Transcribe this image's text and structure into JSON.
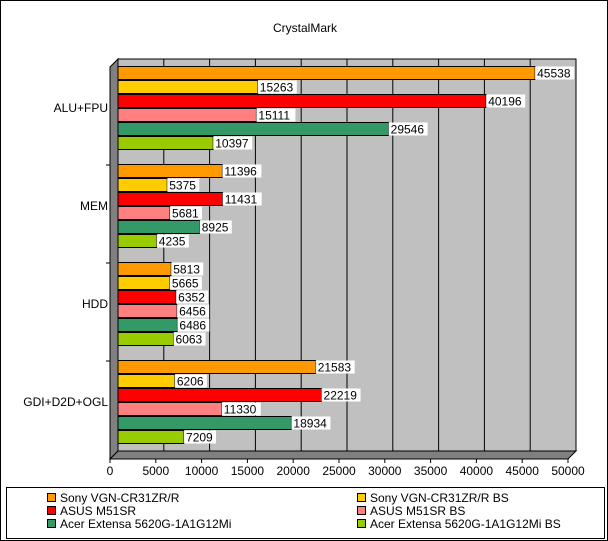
{
  "chart_data": {
    "type": "bar",
    "orientation": "horizontal",
    "title": "CrystalMark",
    "categories": [
      "ALU+FPU",
      "MEM",
      "HDD",
      "GDI+D2D+OGL"
    ],
    "series": [
      {
        "name": "Sony VGN-CR31ZR/R",
        "color": "#FF9900",
        "values": [
          45538,
          11396,
          5813,
          21583
        ]
      },
      {
        "name": "Sony VGN-CR31ZR/R BS",
        "color": "#FFCC00",
        "values": [
          15263,
          5375,
          5665,
          6206
        ]
      },
      {
        "name": "ASUS M51SR",
        "color": "#FF0000",
        "values": [
          40196,
          11431,
          6352,
          22219
        ]
      },
      {
        "name": "ASUS M51SR BS",
        "color": "#FF8080",
        "values": [
          15111,
          5681,
          6456,
          11330
        ]
      },
      {
        "name": "Acer Extensa 5620G-1A1G12Mi",
        "color": "#339966",
        "values": [
          29546,
          8925,
          6486,
          18934
        ]
      },
      {
        "name": "Acer Extensa 5620G-1A1G12Mi BS",
        "color": "#99CC00",
        "values": [
          10397,
          4235,
          6063,
          7209
        ]
      }
    ],
    "xlim": [
      0,
      50000
    ],
    "x_ticks": [
      "0",
      "5000",
      "10000",
      "15000",
      "20000",
      "25000",
      "30000",
      "35000",
      "40000",
      "45000",
      "50000"
    ],
    "grid": true,
    "plot_background": "#C0C0C0",
    "legend_position": "bottom"
  }
}
